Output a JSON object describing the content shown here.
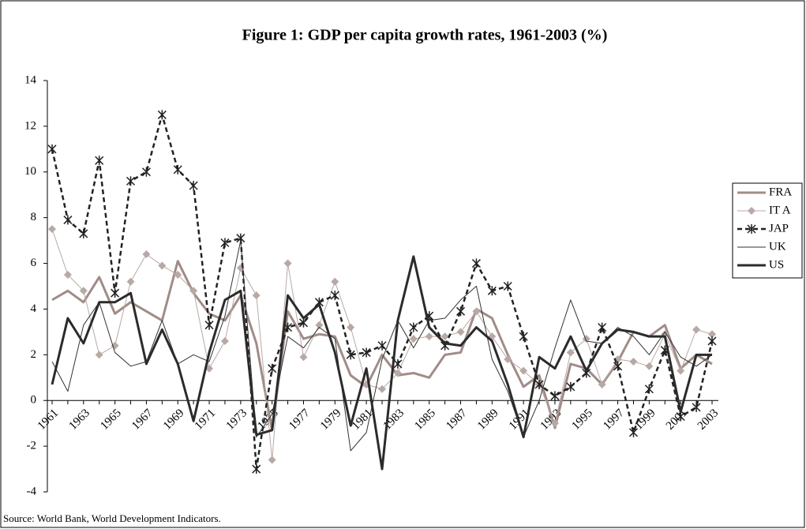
{
  "chart_data": {
    "type": "line",
    "title": "Figure 1: GDP per capita growth rates, 1961-2003 (%)",
    "source": "Source: World Bank, World Development Indicators.",
    "categories": [
      "1961",
      null,
      "1963",
      null,
      "1965",
      null,
      "1967",
      null,
      "1969",
      null,
      "1971",
      null,
      "1973",
      null,
      "1975",
      null,
      "1977",
      null,
      "1979",
      null,
      "1981",
      null,
      "1983",
      null,
      "1985",
      null,
      "1987",
      null,
      "1989",
      null,
      "1991",
      null,
      "1993",
      null,
      "1995",
      null,
      "1997",
      null,
      "1999",
      null,
      "2001",
      null,
      "2003"
    ],
    "ylim": [
      -4,
      14
    ],
    "yticks": [
      -4,
      -2,
      0,
      2,
      4,
      6,
      8,
      10,
      12,
      14
    ],
    "grid": false,
    "legend": "right",
    "series": [
      {
        "name": "FRA",
        "color": "#a08c87",
        "values": [
          4.4,
          4.8,
          4.3,
          5.4,
          3.8,
          4.3,
          3.9,
          3.5,
          6.1,
          4.7,
          3.8,
          3.5,
          4.6,
          2.5,
          -1.3,
          3.9,
          2.7,
          2.9,
          2.8,
          1.1,
          0.6,
          2.0,
          1.1,
          1.2,
          1.0,
          2.0,
          2.1,
          4.0,
          3.6,
          2.0,
          0.6,
          1.1,
          -1.2,
          1.6,
          1.4,
          0.7,
          1.7,
          3.0,
          2.8,
          3.3,
          1.4,
          2.0,
          1.6
        ]
      },
      {
        "name": "IT A",
        "color": "#b8a9a5",
        "values": [
          7.5,
          5.5,
          4.8,
          2.0,
          2.4,
          5.2,
          6.4,
          5.9,
          5.5,
          4.8,
          1.4,
          2.6,
          5.8,
          4.6,
          -2.6,
          6.0,
          1.9,
          3.3,
          5.2,
          3.2,
          0.7,
          0.5,
          1.2,
          2.7,
          2.8,
          2.8,
          3.0,
          3.9,
          2.8,
          1.8,
          1.3,
          0.7,
          -1.0,
          2.1,
          2.7,
          0.7,
          1.8,
          1.7,
          1.5,
          2.9,
          1.3,
          3.1,
          2.9
        ]
      },
      {
        "name": "JAP",
        "color": "#222222",
        "values": [
          11.0,
          7.9,
          7.3,
          10.5,
          4.7,
          9.6,
          10.0,
          12.5,
          10.1,
          9.4,
          3.3,
          6.9,
          7.1,
          -3.0,
          1.4,
          3.2,
          3.4,
          4.3,
          4.6,
          2.0,
          2.1,
          2.4,
          1.6,
          3.2,
          3.7,
          2.4,
          3.9,
          6.0,
          4.8,
          5.0,
          2.8,
          0.7,
          0.2,
          0.6,
          1.2,
          3.2,
          1.5,
          -1.4,
          0.5,
          2.2,
          -0.7,
          -0.3,
          2.6
        ]
      },
      {
        "name": "UK",
        "color": "#333333",
        "values": [
          1.7,
          0.4,
          3.3,
          4.3,
          2.1,
          1.5,
          1.7,
          3.5,
          1.6,
          2.0,
          1.7,
          3.7,
          7.0,
          -1.6,
          -0.6,
          2.8,
          2.3,
          3.2,
          2.7,
          -2.2,
          -1.4,
          1.8,
          3.5,
          2.3,
          3.5,
          3.6,
          4.4,
          5.0,
          1.8,
          0.4,
          -1.6,
          0.0,
          2.3,
          4.4,
          2.6,
          2.5,
          3.2,
          2.8,
          2.0,
          3.0,
          1.9,
          1.5,
          2.0
        ]
      },
      {
        "name": "US",
        "color": "#2b2b2b",
        "values": [
          0.7,
          3.6,
          2.5,
          4.3,
          4.3,
          4.7,
          1.6,
          3.1,
          1.6,
          -0.9,
          2.1,
          4.4,
          4.8,
          -1.5,
          -1.3,
          4.6,
          3.6,
          4.2,
          2.1,
          -1.1,
          1.4,
          -3.0,
          3.5,
          6.3,
          3.2,
          2.5,
          2.4,
          3.2,
          2.6,
          0.7,
          -1.6,
          1.9,
          1.4,
          2.8,
          1.3,
          2.5,
          3.1,
          3.0,
          2.8,
          2.8,
          -0.5,
          2.0,
          2.0
        ]
      }
    ]
  }
}
